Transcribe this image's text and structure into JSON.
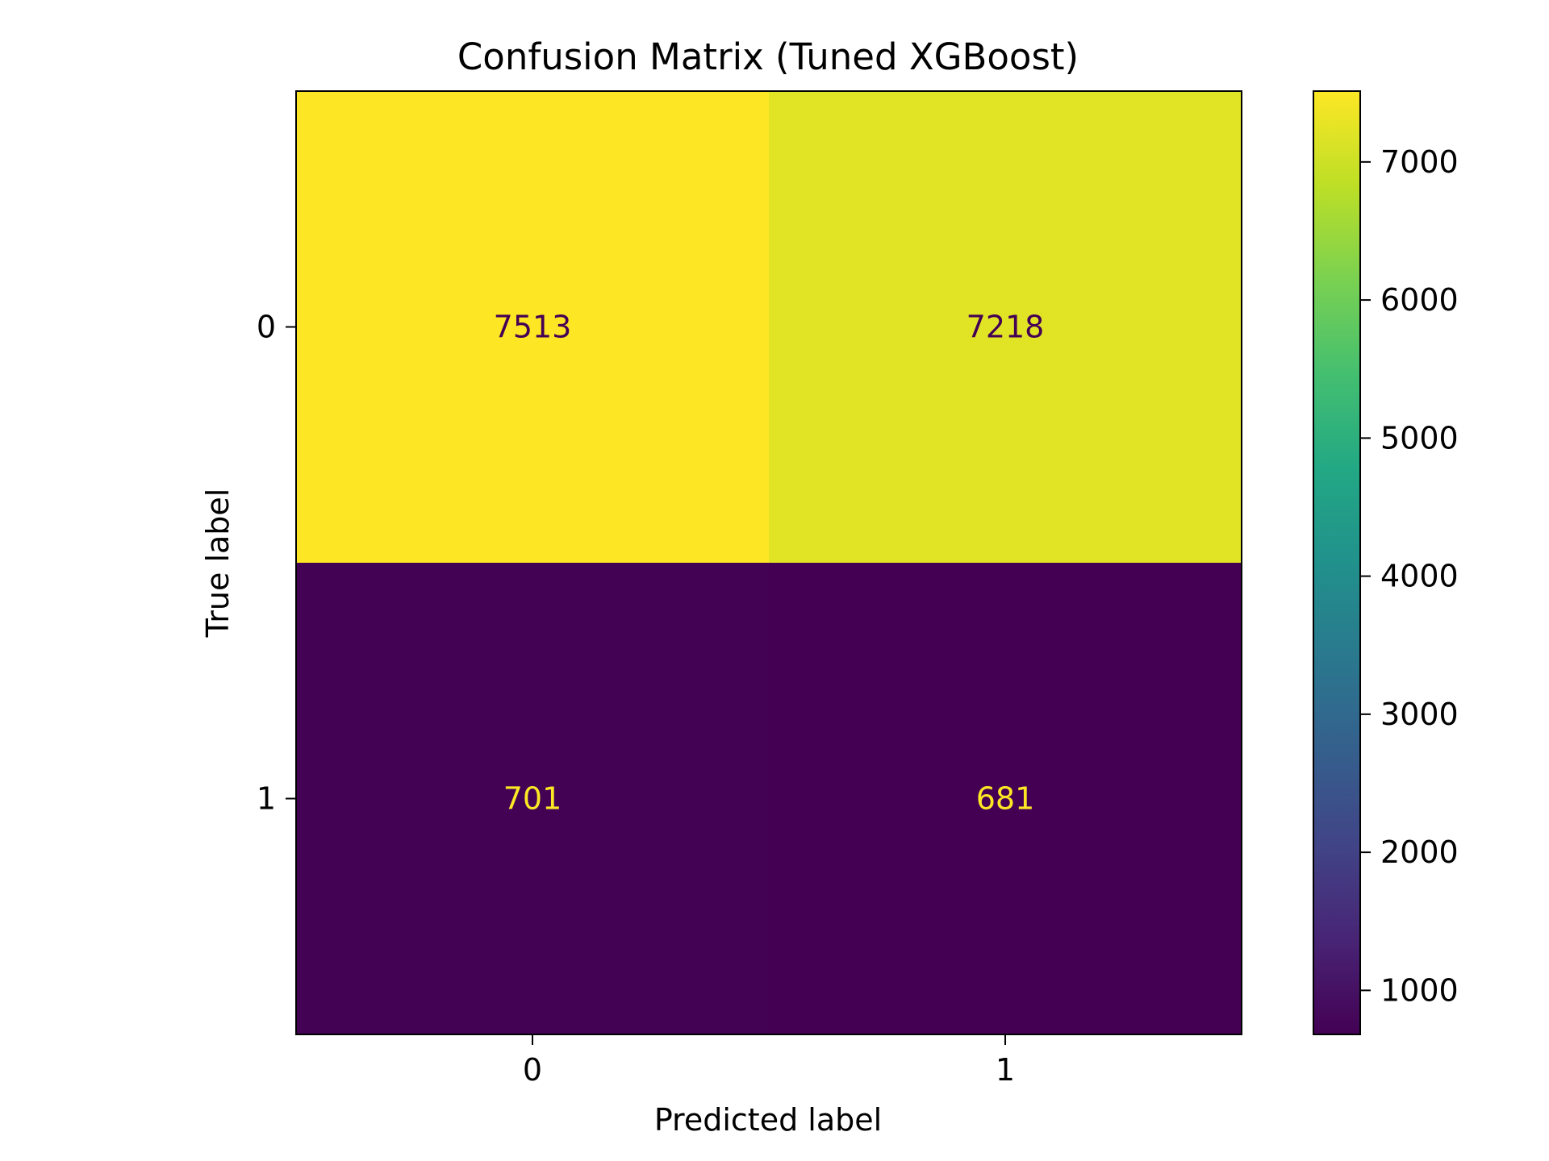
{
  "chart_data": {
    "type": "heatmap",
    "title": "Confusion Matrix (Tuned XGBoost)",
    "xlabel": "Predicted label",
    "ylabel": "True label",
    "x_categories": [
      "0",
      "1"
    ],
    "y_categories": [
      "0",
      "1"
    ],
    "values": [
      [
        7513,
        7218
      ],
      [
        701,
        681
      ]
    ],
    "colormap": "viridis",
    "colorbar": {
      "range": [
        681,
        7513
      ],
      "ticks": [
        1000,
        2000,
        3000,
        4000,
        5000,
        6000,
        7000
      ],
      "tick_labels": [
        "1000",
        "2000",
        "3000",
        "4000",
        "5000",
        "6000",
        "7000"
      ]
    },
    "text_colors": {
      "on_light": "#440154",
      "on_dark": "#fde725"
    },
    "grid": false
  }
}
